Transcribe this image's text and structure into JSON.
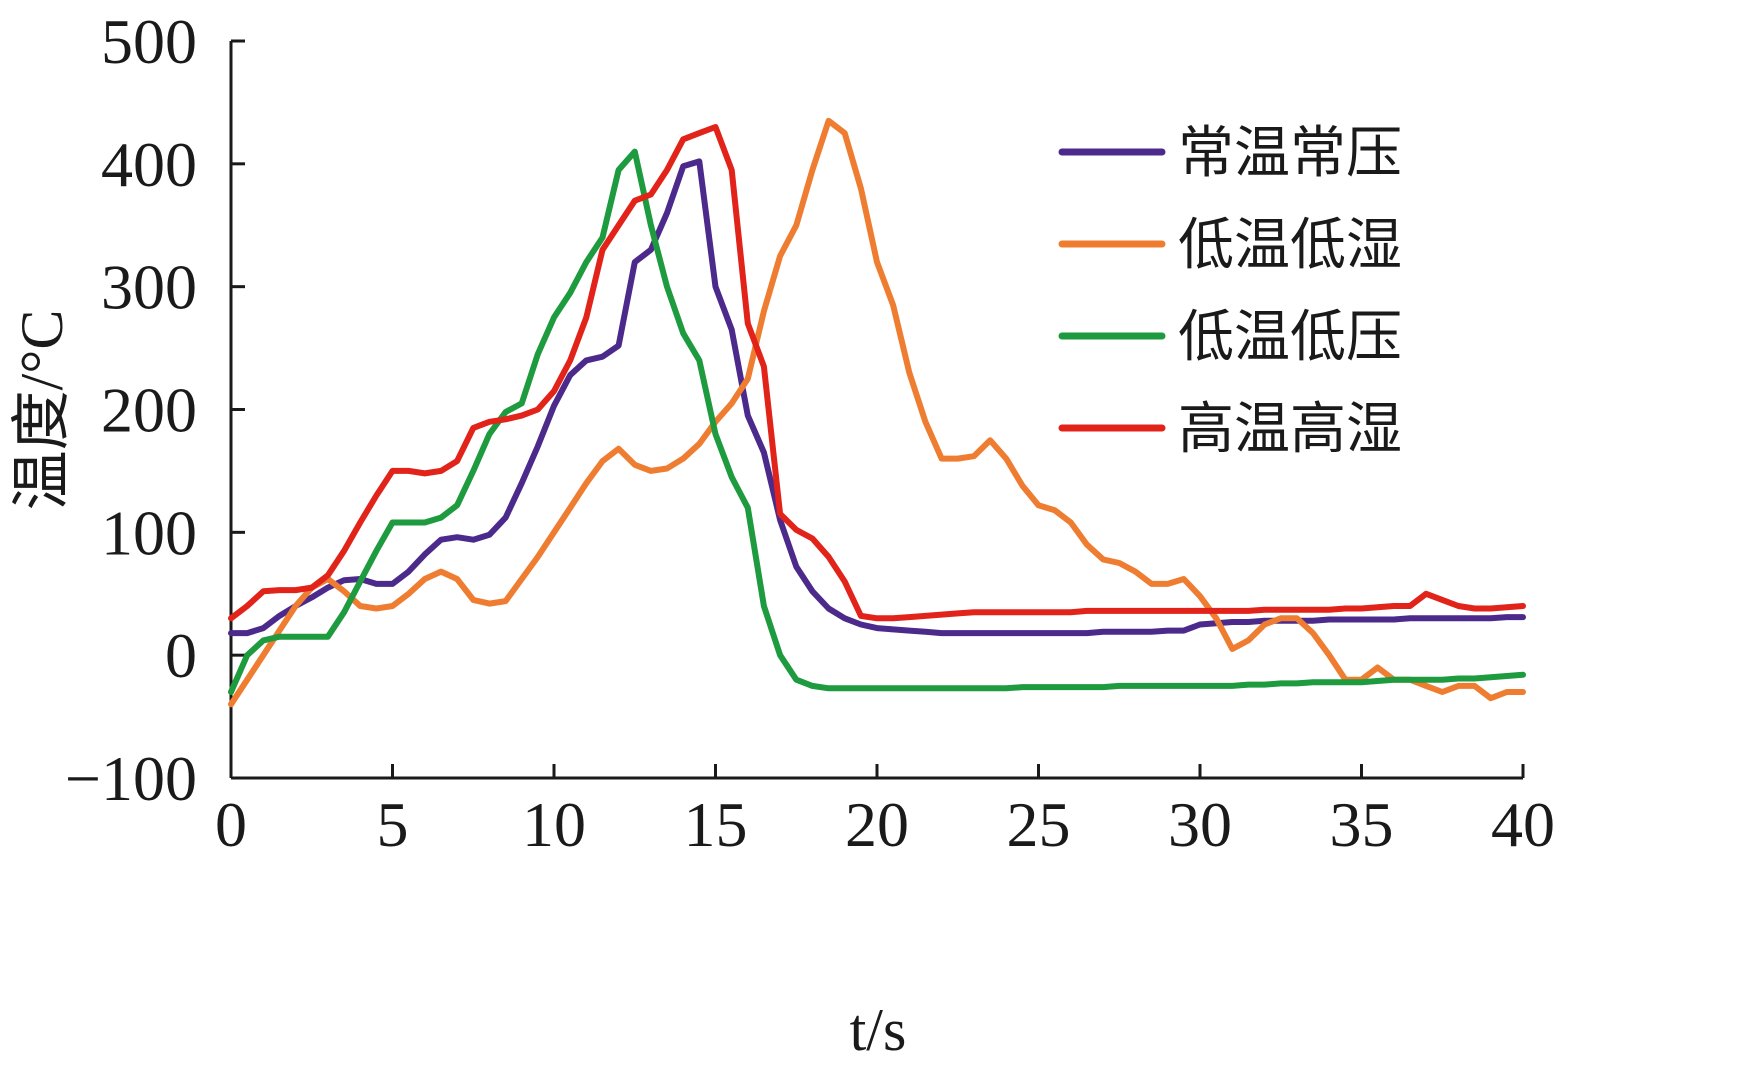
{
  "chart_data": {
    "type": "line",
    "title": "",
    "xlabel": "t/s",
    "ylabel": "温度/°C",
    "xlim": [
      0,
      40
    ],
    "ylim": [
      -100,
      500
    ],
    "xticks": [
      0,
      5,
      10,
      15,
      20,
      25,
      30,
      35,
      40
    ],
    "xtick_labels": [
      "0",
      "5",
      "10",
      "15",
      "20",
      "25",
      "30",
      "35",
      "40"
    ],
    "yticks": [
      -100,
      0,
      100,
      200,
      300,
      400,
      500
    ],
    "ytick_labels": [
      "−100",
      "0",
      "100",
      "200",
      "300",
      "400",
      "500"
    ],
    "grid": false,
    "legend_position": "top-right",
    "x": [
      0,
      0.5,
      1,
      1.5,
      2,
      2.5,
      3,
      3.5,
      4,
      4.5,
      5,
      5.5,
      6,
      6.5,
      7,
      7.5,
      8,
      8.5,
      9,
      9.5,
      10,
      10.5,
      11,
      11.5,
      12,
      12.5,
      13,
      13.5,
      14,
      14.5,
      15,
      15.5,
      16,
      16.5,
      17,
      17.5,
      18,
      18.5,
      19,
      19.5,
      20,
      20.5,
      21,
      21.5,
      22,
      22.5,
      23,
      23.5,
      24,
      24.5,
      25,
      25.5,
      26,
      26.5,
      27,
      27.5,
      28,
      28.5,
      29,
      29.5,
      30,
      30.5,
      31,
      31.5,
      32,
      32.5,
      33,
      33.5,
      34,
      34.5,
      35,
      35.5,
      36,
      36.5,
      37,
      37.5,
      38,
      38.5,
      39,
      39.5,
      40
    ],
    "series": [
      {
        "name": "常温常压",
        "color": "#4b2a8c",
        "values": [
          18,
          18,
          22,
          32,
          40,
          47,
          55,
          61,
          62,
          58,
          58,
          68,
          82,
          94,
          96,
          94,
          98,
          112,
          140,
          170,
          203,
          228,
          240,
          243,
          252,
          320,
          330,
          360,
          398,
          402,
          300,
          265,
          195,
          165,
          110,
          72,
          52,
          38,
          30,
          25,
          22,
          21,
          20,
          19,
          18,
          18,
          18,
          18,
          18,
          18,
          18,
          18,
          18,
          18,
          19,
          19,
          19,
          19,
          20,
          20,
          25,
          26,
          27,
          27,
          28,
          28,
          28,
          28,
          29,
          29,
          29,
          29,
          29,
          30,
          30,
          30,
          30,
          30,
          30,
          31,
          31
        ]
      },
      {
        "name": "低温低湿",
        "color": "#ef7d31",
        "values": [
          -40,
          -20,
          0,
          20,
          40,
          55,
          62,
          52,
          40,
          38,
          40,
          50,
          62,
          68,
          62,
          45,
          42,
          44,
          62,
          80,
          100,
          120,
          140,
          158,
          168,
          155,
          150,
          152,
          160,
          172,
          190,
          205,
          225,
          280,
          325,
          350,
          395,
          435,
          425,
          380,
          320,
          285,
          230,
          190,
          160,
          160,
          162,
          175,
          160,
          138,
          122,
          118,
          108,
          90,
          78,
          75,
          68,
          58,
          58,
          62,
          48,
          30,
          5,
          12,
          25,
          30,
          30,
          18,
          0,
          -20,
          -20,
          -10,
          -20,
          -20,
          -25,
          -30,
          -25,
          -25,
          -35,
          -30,
          -30
        ]
      },
      {
        "name": "低温低压",
        "color": "#1e9a3f",
        "values": [
          -30,
          0,
          12,
          15,
          15,
          15,
          15,
          35,
          60,
          85,
          108,
          108,
          108,
          112,
          122,
          150,
          180,
          198,
          205,
          245,
          275,
          295,
          320,
          340,
          395,
          410,
          350,
          300,
          262,
          240,
          180,
          145,
          120,
          40,
          0,
          -20,
          -25,
          -27,
          -27,
          -27,
          -27,
          -27,
          -27,
          -27,
          -27,
          -27,
          -27,
          -27,
          -27,
          -26,
          -26,
          -26,
          -26,
          -26,
          -26,
          -25,
          -25,
          -25,
          -25,
          -25,
          -25,
          -25,
          -25,
          -24,
          -24,
          -23,
          -23,
          -22,
          -22,
          -22,
          -22,
          -21,
          -20,
          -20,
          -20,
          -20,
          -19,
          -19,
          -18,
          -17,
          -16
        ]
      },
      {
        "name": "高温高湿",
        "color": "#e2231a",
        "values": [
          30,
          40,
          52,
          53,
          53,
          55,
          65,
          85,
          108,
          130,
          150,
          150,
          148,
          150,
          158,
          185,
          190,
          192,
          195,
          200,
          215,
          240,
          275,
          330,
          350,
          370,
          375,
          395,
          420,
          425,
          430,
          395,
          270,
          235,
          115,
          102,
          95,
          80,
          60,
          32,
          30,
          30,
          31,
          32,
          33,
          34,
          35,
          35,
          35,
          35,
          35,
          35,
          35,
          36,
          36,
          36,
          36,
          36,
          36,
          36,
          36,
          36,
          36,
          36,
          37,
          37,
          37,
          37,
          37,
          38,
          38,
          39,
          40,
          40,
          50,
          45,
          40,
          38,
          38,
          39,
          40
        ]
      }
    ]
  }
}
